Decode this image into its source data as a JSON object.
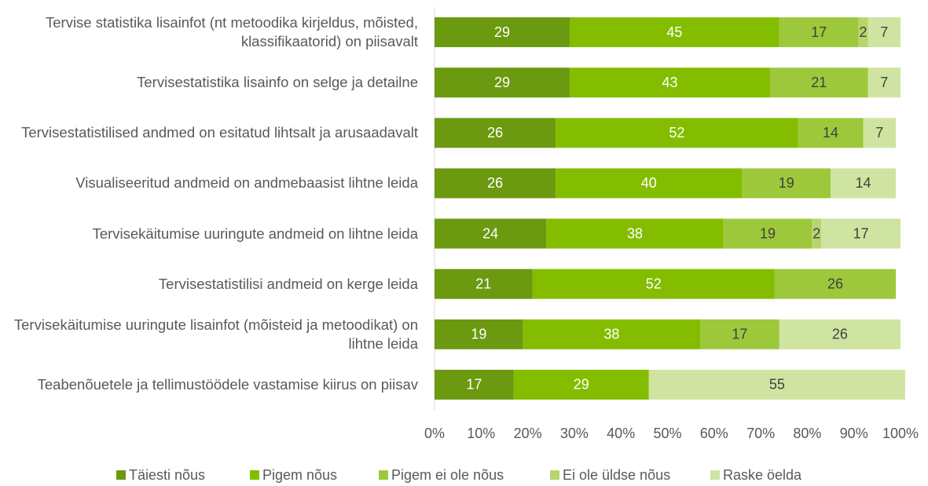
{
  "chart_data": {
    "type": "stacked_barh",
    "categories": [
      "Tervise statistika lisainfot (nt metoodika kirjeldus, mõisted, klassifikaatorid) on piisavalt",
      "Tervisestatistika lisainfo on selge ja detailne",
      "Tervisestatistilised andmed on esitatud lihtsalt ja arusaadavalt",
      "Visualiseeritud andmeid on andmebaasist lihtne leida",
      "Tervisekäitumise uuringute andmeid on lihtne leida",
      "Tervisestatistilisi andmeid on kerge leida",
      "Tervisekäitumise uuringute lisainfot (mõisteid ja metoodikat) on lihtne leida",
      "Teabenõuetele ja tellimustöödele vastamise kiirus on piisav"
    ],
    "series": [
      {
        "name": "Täiesti nõus",
        "color": "#6b990f",
        "values": [
          29,
          29,
          26,
          26,
          24,
          21,
          19,
          17
        ]
      },
      {
        "name": "Pigem nõus",
        "color": "#84bd00",
        "values": [
          45,
          43,
          52,
          40,
          38,
          52,
          38,
          29
        ]
      },
      {
        "name": "Pigem ei ole nõus",
        "color": "#9dc83b",
        "values": [
          17,
          21,
          14,
          19,
          19,
          26,
          17,
          null
        ]
      },
      {
        "name": "Ei ole üldse nõus",
        "color": "#b6d56c",
        "values": [
          2,
          null,
          null,
          null,
          2,
          null,
          null,
          null
        ]
      },
      {
        "name": "Raske öelda",
        "color": "#d0e4a1",
        "values": [
          7,
          7,
          7,
          14,
          17,
          null,
          26,
          55
        ]
      }
    ],
    "xlim": [
      0,
      100
    ],
    "xticks": [
      {
        "value": 0,
        "label": "0%"
      },
      {
        "value": 10,
        "label": "10%"
      },
      {
        "value": 20,
        "label": "20%"
      },
      {
        "value": 30,
        "label": "30%"
      },
      {
        "value": 40,
        "label": "40%"
      },
      {
        "value": 50,
        "label": "50%"
      },
      {
        "value": 60,
        "label": "60%"
      },
      {
        "value": 70,
        "label": "70%"
      },
      {
        "value": 80,
        "label": "80%"
      },
      {
        "value": 90,
        "label": "90%"
      },
      {
        "value": 100,
        "label": "100%"
      }
    ],
    "legend": "bottom"
  }
}
